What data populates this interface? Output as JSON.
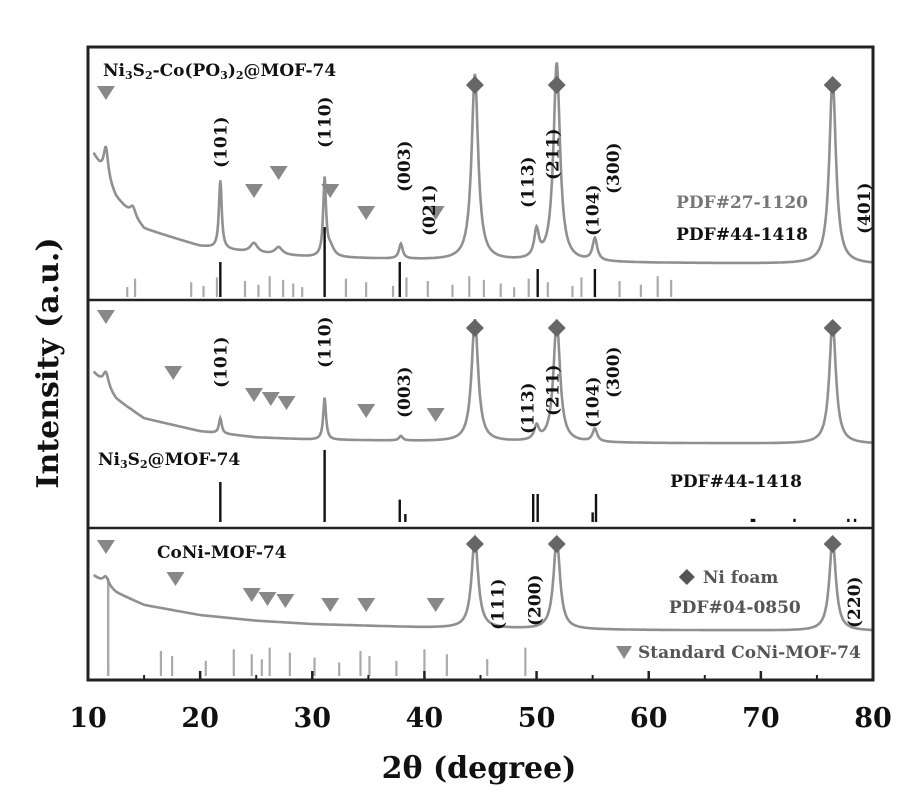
{
  "chart_data": {
    "type": "line",
    "xlabel": "2θ (degree)",
    "ylabel": "Intensity (a.u.)",
    "xlim": [
      10,
      80
    ],
    "xticks": [
      10,
      20,
      30,
      40,
      50,
      60,
      70,
      80
    ],
    "colors": {
      "curve": "#909090",
      "reference": "#111111",
      "frame": "#222222"
    },
    "panels": [
      {
        "name": "Ni3S2-Co(PO3)2@MOF-74",
        "label": {
          "parts": [
            {
              "t": "Ni"
            },
            {
              "t": "3",
              "sub": true
            },
            {
              "t": "S"
            },
            {
              "t": "2",
              "sub": true
            },
            {
              "t": "-Co(PO"
            },
            {
              "t": "3",
              "sub": true
            },
            {
              "t": ")"
            },
            {
              "t": "2",
              "sub": true
            },
            {
              "t": "@MOF-74"
            }
          ]
        },
        "ref_labels": [
          {
            "text": "PDF#27-1120",
            "grey": true
          },
          {
            "text": "PDF#44-1418",
            "grey": false
          }
        ],
        "peak_labels": [
          {
            "x": 21.8,
            "text": "(101)"
          },
          {
            "x": 31.1,
            "text": "(110)"
          },
          {
            "x": 38.2,
            "text": "(003)"
          },
          {
            "x": 40.4,
            "text": "(021)"
          },
          {
            "x": 49.2,
            "text": "(113)"
          },
          {
            "x": 51.4,
            "text": "(211)"
          },
          {
            "x": 55.0,
            "text": "(104)"
          },
          {
            "x": 56.8,
            "text": "(300)"
          },
          {
            "x": 79.2,
            "text": "(401)"
          }
        ],
        "mof_triangles": [
          11.6,
          24.8,
          27.0,
          31.6,
          34.8,
          41.0
        ],
        "ni_diamonds": [
          44.5,
          51.8,
          76.4
        ],
        "reference_lines": [
          {
            "x": 21.8,
            "h": 0.5
          },
          {
            "x": 31.1,
            "h": 1.0
          },
          {
            "x": 37.8,
            "h": 0.5
          },
          {
            "x": 50.1,
            "h": 0.4
          },
          {
            "x": 55.2,
            "h": 0.4
          }
        ],
        "grey_reference_lines": [
          13.5,
          14.2,
          19.2,
          20.3,
          21.5,
          24.0,
          25.2,
          26.2,
          27.4,
          28.3,
          29.1,
          33.0,
          34.8,
          37.2,
          38.4,
          40.3,
          42.5,
          44.0,
          45.3,
          46.8,
          48.0,
          49.3,
          51.0,
          53.2,
          54.0,
          57.4,
          59.3,
          60.8,
          62.0
        ],
        "curve": {
          "baseline": [
            [
              10.5,
              0.9
            ],
            [
              12.5,
              0.55
            ],
            [
              15,
              0.3
            ],
            [
              20,
              0.16
            ],
            [
              25,
              0.1
            ],
            [
              30,
              0.07
            ],
            [
              40,
              0.05
            ],
            [
              50,
              0.035
            ],
            [
              60,
              0.025
            ],
            [
              80,
              0.015
            ]
          ],
          "peaks": [
            {
              "x": 11.6,
              "h": 0.25,
              "w": 0.25
            },
            {
              "x": 14.0,
              "h": 0.08,
              "w": 0.3
            },
            {
              "x": 21.8,
              "h": 0.55,
              "w": 0.15
            },
            {
              "x": 24.8,
              "h": 0.08,
              "w": 0.4
            },
            {
              "x": 27.0,
              "h": 0.06,
              "w": 0.4
            },
            {
              "x": 31.1,
              "h": 0.62,
              "w": 0.15
            },
            {
              "x": 31.6,
              "h": 0.08,
              "w": 0.4
            },
            {
              "x": 37.9,
              "h": 0.12,
              "w": 0.2
            },
            {
              "x": 44.5,
              "h": 1.5,
              "w": 0.35
            },
            {
              "x": 50.0,
              "h": 0.22,
              "w": 0.25
            },
            {
              "x": 51.8,
              "h": 1.6,
              "w": 0.35
            },
            {
              "x": 55.2,
              "h": 0.18,
              "w": 0.25
            },
            {
              "x": 76.4,
              "h": 1.5,
              "w": 0.35
            }
          ]
        }
      },
      {
        "name": "Ni3S2@MOF-74",
        "label": {
          "parts": [
            {
              "t": "Ni"
            },
            {
              "t": "3",
              "sub": true
            },
            {
              "t": "S"
            },
            {
              "t": "2",
              "sub": true
            },
            {
              "t": "@MOF-74"
            }
          ]
        },
        "ref_labels": [
          {
            "text": "PDF#44-1418",
            "grey": false
          }
        ],
        "peak_labels": [
          {
            "x": 21.8,
            "text": "(101)"
          },
          {
            "x": 31.1,
            "text": "(110)"
          },
          {
            "x": 38.2,
            "text": "(003)"
          },
          {
            "x": 49.2,
            "text": "(113)"
          },
          {
            "x": 51.4,
            "text": "(211)"
          },
          {
            "x": 55.0,
            "text": "(104)"
          },
          {
            "x": 56.8,
            "text": "(300)"
          }
        ],
        "mof_triangles": [
          11.6,
          17.6,
          24.8,
          26.3,
          27.7,
          34.8,
          41.0
        ],
        "ni_diamonds": [
          44.5,
          51.8,
          76.4
        ],
        "reference_lines": [
          {
            "x": 21.8,
            "h": 0.5
          },
          {
            "x": 31.1,
            "h": 0.9
          },
          {
            "x": 37.8,
            "h": 0.28
          },
          {
            "x": 38.3,
            "h": 0.1
          },
          {
            "x": 49.7,
            "h": 0.35
          },
          {
            "x": 50.1,
            "h": 0.35
          },
          {
            "x": 55.0,
            "h": 0.12
          },
          {
            "x": 55.3,
            "h": 0.35
          },
          {
            "x": 69.2,
            "h": 0.04
          },
          {
            "x": 69.4,
            "h": 0.04
          },
          {
            "x": 73.0,
            "h": 0.04
          },
          {
            "x": 77.8,
            "h": 0.04
          },
          {
            "x": 78.4,
            "h": 0.04
          }
        ],
        "grey_reference_lines": [],
        "curve": {
          "baseline": [
            [
              10.5,
              0.95
            ],
            [
              12.5,
              0.6
            ],
            [
              15,
              0.35
            ],
            [
              20,
              0.18
            ],
            [
              25,
              0.1
            ],
            [
              30,
              0.07
            ],
            [
              40,
              0.05
            ],
            [
              50,
              0.035
            ],
            [
              60,
              0.025
            ],
            [
              80,
              0.015
            ]
          ],
          "peaks": [
            {
              "x": 11.6,
              "h": 0.2,
              "w": 0.3
            },
            {
              "x": 21.8,
              "h": 0.2,
              "w": 0.15
            },
            {
              "x": 31.1,
              "h": 0.55,
              "w": 0.15
            },
            {
              "x": 37.9,
              "h": 0.06,
              "w": 0.2
            },
            {
              "x": 44.5,
              "h": 1.6,
              "w": 0.35
            },
            {
              "x": 50.0,
              "h": 0.18,
              "w": 0.25
            },
            {
              "x": 51.8,
              "h": 1.6,
              "w": 0.35
            },
            {
              "x": 55.2,
              "h": 0.17,
              "w": 0.25
            },
            {
              "x": 76.4,
              "h": 1.6,
              "w": 0.35
            }
          ]
        }
      },
      {
        "name": "CoNi-MOF-74",
        "label": {
          "parts": [
            {
              "t": "CoNi-MOF-74"
            }
          ]
        },
        "ref_labels": [],
        "peak_labels": [
          {
            "x": 46.5,
            "text": "(111)"
          },
          {
            "x": 49.8,
            "text": "(200)"
          },
          {
            "x": 78.3,
            "text": "(220)"
          }
        ],
        "mof_triangles": [
          11.6,
          17.8,
          24.6,
          26.0,
          27.6,
          31.6,
          34.8,
          41.0
        ],
        "ni_diamonds": [
          44.5,
          51.8,
          76.4
        ],
        "reference_lines": [],
        "grey_reference_lines": [
          11.8,
          16.5,
          17.5,
          20.5,
          23.0,
          24.6,
          25.5,
          26.2,
          28.0,
          30.2,
          32.4,
          34.3,
          35.1,
          37.5,
          40.0,
          42.0,
          45.6,
          49.0
        ],
        "legend": {
          "ni_foam": "Ni foam",
          "pdf": "PDF#04-0850",
          "standard": "Standard CoNi-MOF-74"
        },
        "curve": {
          "baseline": [
            [
              10.5,
              1.0
            ],
            [
              12.5,
              0.7
            ],
            [
              15,
              0.48
            ],
            [
              20,
              0.3
            ],
            [
              25,
              0.2
            ],
            [
              30,
              0.14
            ],
            [
              40,
              0.08
            ],
            [
              50,
              0.05
            ],
            [
              60,
              0.035
            ],
            [
              80,
              0.02
            ]
          ],
          "peaks": [
            {
              "x": 11.6,
              "h": 0.15,
              "w": 0.3
            },
            {
              "x": 44.5,
              "h": 1.6,
              "w": 0.35
            },
            {
              "x": 51.8,
              "h": 1.6,
              "w": 0.35
            },
            {
              "x": 76.4,
              "h": 1.6,
              "w": 0.35
            }
          ]
        }
      }
    ]
  }
}
